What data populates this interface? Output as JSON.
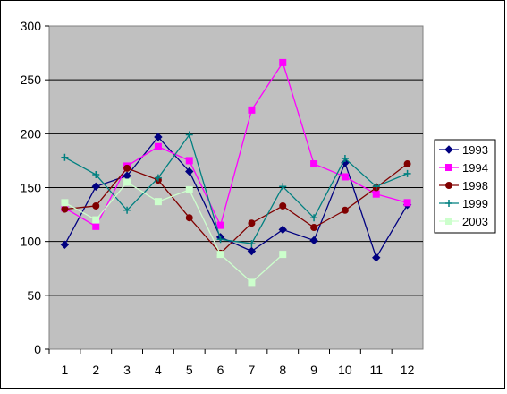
{
  "chart_data": {
    "type": "line",
    "title": "",
    "xlabel": "",
    "ylabel": "",
    "x": [
      1,
      2,
      3,
      4,
      5,
      6,
      7,
      8,
      9,
      10,
      11,
      12
    ],
    "ylim": [
      0,
      300
    ],
    "yticks": [
      0,
      50,
      100,
      150,
      200,
      250,
      300
    ],
    "grid": true,
    "plot_background": "#c0c0c0",
    "legend_position": "right",
    "series": [
      {
        "name": "1993",
        "color": "#000080",
        "marker": "diamond",
        "values": [
          97,
          151,
          161,
          197,
          165,
          104,
          91,
          111,
          101,
          173,
          85,
          134
        ]
      },
      {
        "name": "1994",
        "color": "#ff00ff",
        "marker": "square",
        "values": [
          131,
          114,
          170,
          188,
          175,
          115,
          222,
          266,
          172,
          160,
          144,
          136
        ]
      },
      {
        "name": "1998",
        "color": "#800000",
        "marker": "circle",
        "values": [
          130,
          133,
          168,
          157,
          122,
          89,
          117,
          133,
          113,
          129,
          150,
          172
        ]
      },
      {
        "name": "1999",
        "color": "#008080",
        "marker": "plus",
        "values": [
          178,
          162,
          129,
          159,
          199,
          102,
          98,
          151,
          122,
          177,
          151,
          163
        ]
      },
      {
        "name": "2003",
        "color": "#ccffcc",
        "marker": "square",
        "values": [
          136,
          120,
          155,
          137,
          148,
          88,
          62,
          88,
          null,
          null,
          null,
          null
        ]
      }
    ]
  }
}
